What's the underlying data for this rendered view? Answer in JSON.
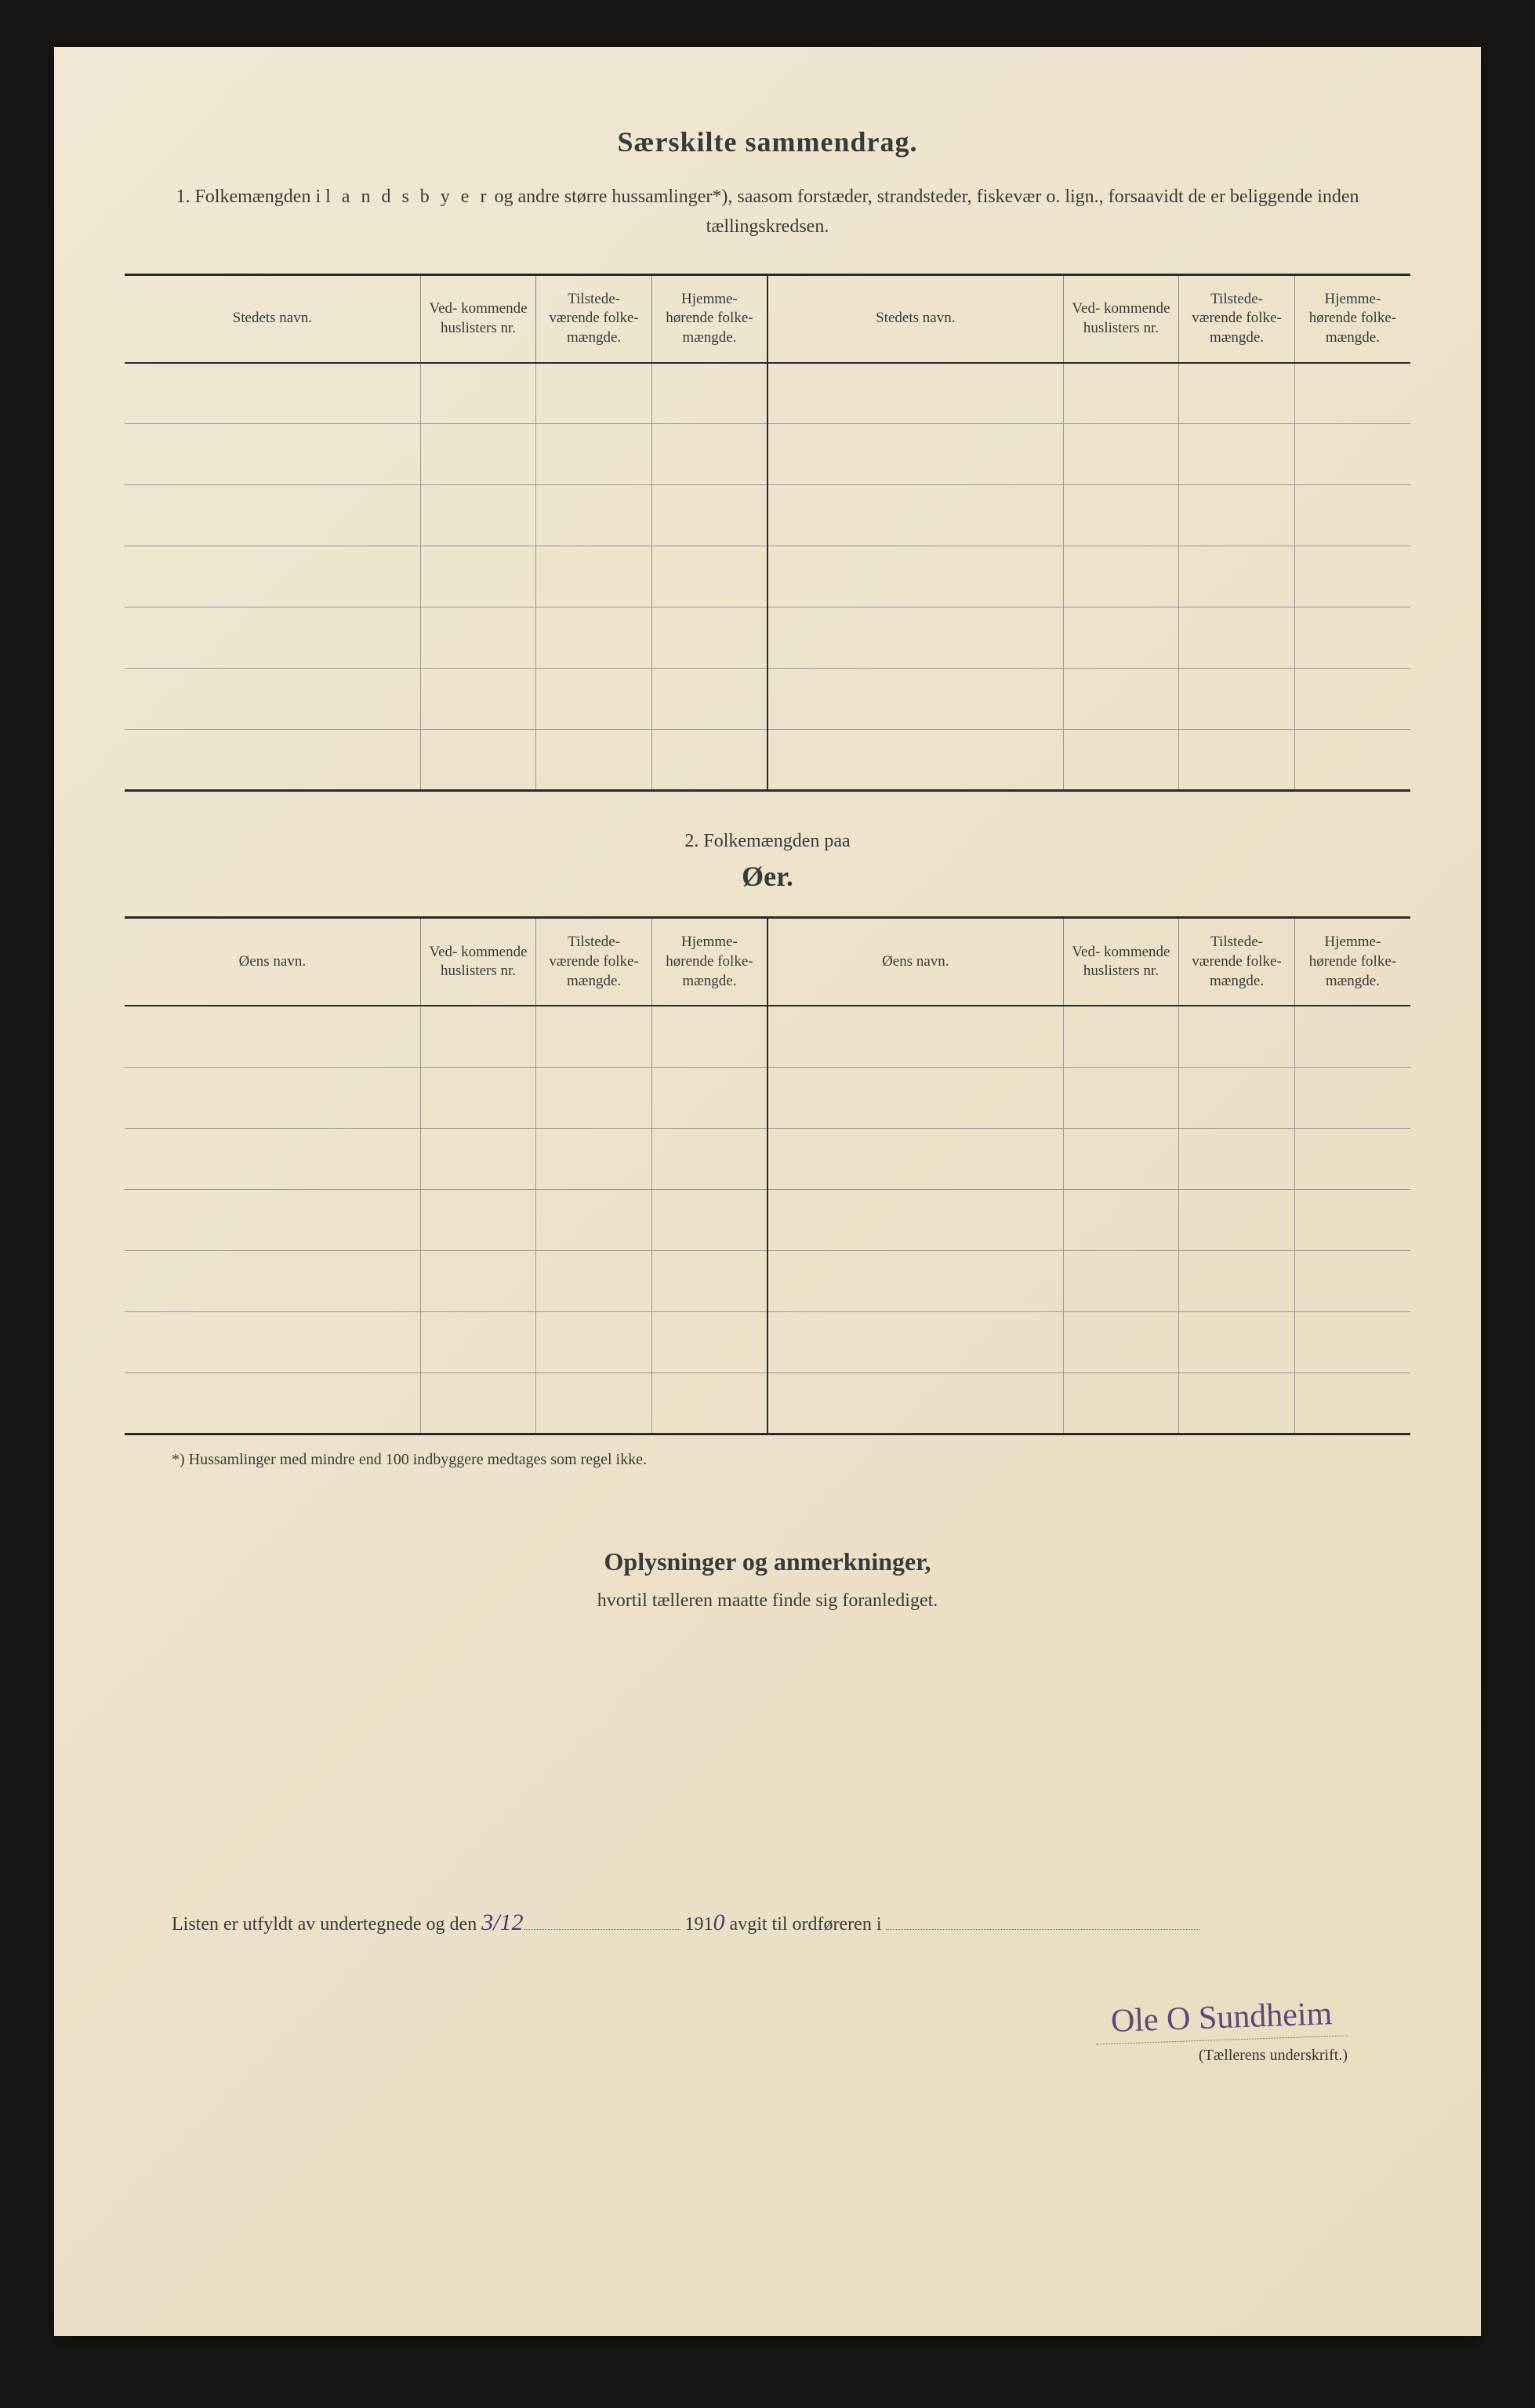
{
  "document": {
    "main_title": "Særskilte sammendrag.",
    "intro_prefix": "1.   Folkemængden i ",
    "intro_spaced": "l a n d s b y e r",
    "intro_suffix": " og andre større hussamlinger*), saasom forstæder, strandsteder, fiskevær o. lign., forsaavidt de er beliggende inden tællingskredsen.",
    "section2_label": "2.   Folkemængden paa",
    "section2_title": "Øer.",
    "footnote": "*)   Hussamlinger med mindre end 100 indbyggere medtages som regel ikke.",
    "remarks_title": "Oplysninger og anmerkninger,",
    "remarks_sub": "hvortil tælleren maatte finde sig foranlediget.",
    "footer_prefix": "Listen er utfyldt av undertegnede og den ",
    "footer_date": "3/12",
    "footer_mid": " 191",
    "footer_year_suffix": "0",
    "footer_suffix": " avgit til ordføreren i ",
    "signature": "Ole O Sundheim",
    "signature_label": "(Tællerens underskrift.)"
  },
  "table1": {
    "headers": {
      "name": "Stedets navn.",
      "col2": "Ved-\nkommende\nhuslisters\nnr.",
      "col3": "Tilstede-\nværende\nfolke-\nmængde.",
      "col4": "Hjemme-\nhørende\nfolke-\nmængde."
    },
    "row_count": 7
  },
  "table2": {
    "headers": {
      "name": "Øens navn.",
      "col2": "Ved-\nkommende\nhuslisters\nnr.",
      "col3": "Tilstede-\nværende\nfolke-\nmængde.",
      "col4": "Hjemme-\nhørende\nfolke-\nmængde."
    },
    "row_count": 7
  },
  "styling": {
    "page_bg": "#ede3cb",
    "outer_bg": "#1a1614",
    "text_color": "#3a3a3a",
    "border_heavy": "#2a2a2a",
    "border_light": "#999",
    "handwriting_color": "#4a3a6a",
    "title_fontsize": 36,
    "body_fontsize": 24,
    "header_fontsize": 19,
    "footnote_fontsize": 20
  }
}
